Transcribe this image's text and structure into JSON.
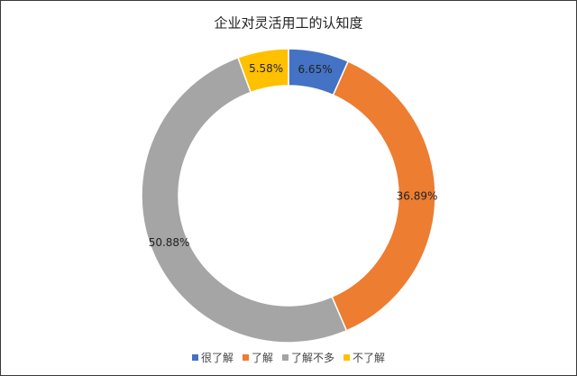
{
  "chart_data": {
    "type": "doughnut",
    "title": "企业对灵活用工的认知度",
    "categories": [
      "很了解",
      "了解",
      "了解不多",
      "不了解"
    ],
    "values": [
      6.65,
      36.89,
      50.88,
      5.58
    ],
    "value_labels": [
      "6.65%",
      "36.89%",
      "50.88%",
      "5.58%"
    ],
    "colors": [
      "#4472c4",
      "#ed7d31",
      "#a5a5a5",
      "#ffc000"
    ],
    "legend": "bottom"
  }
}
